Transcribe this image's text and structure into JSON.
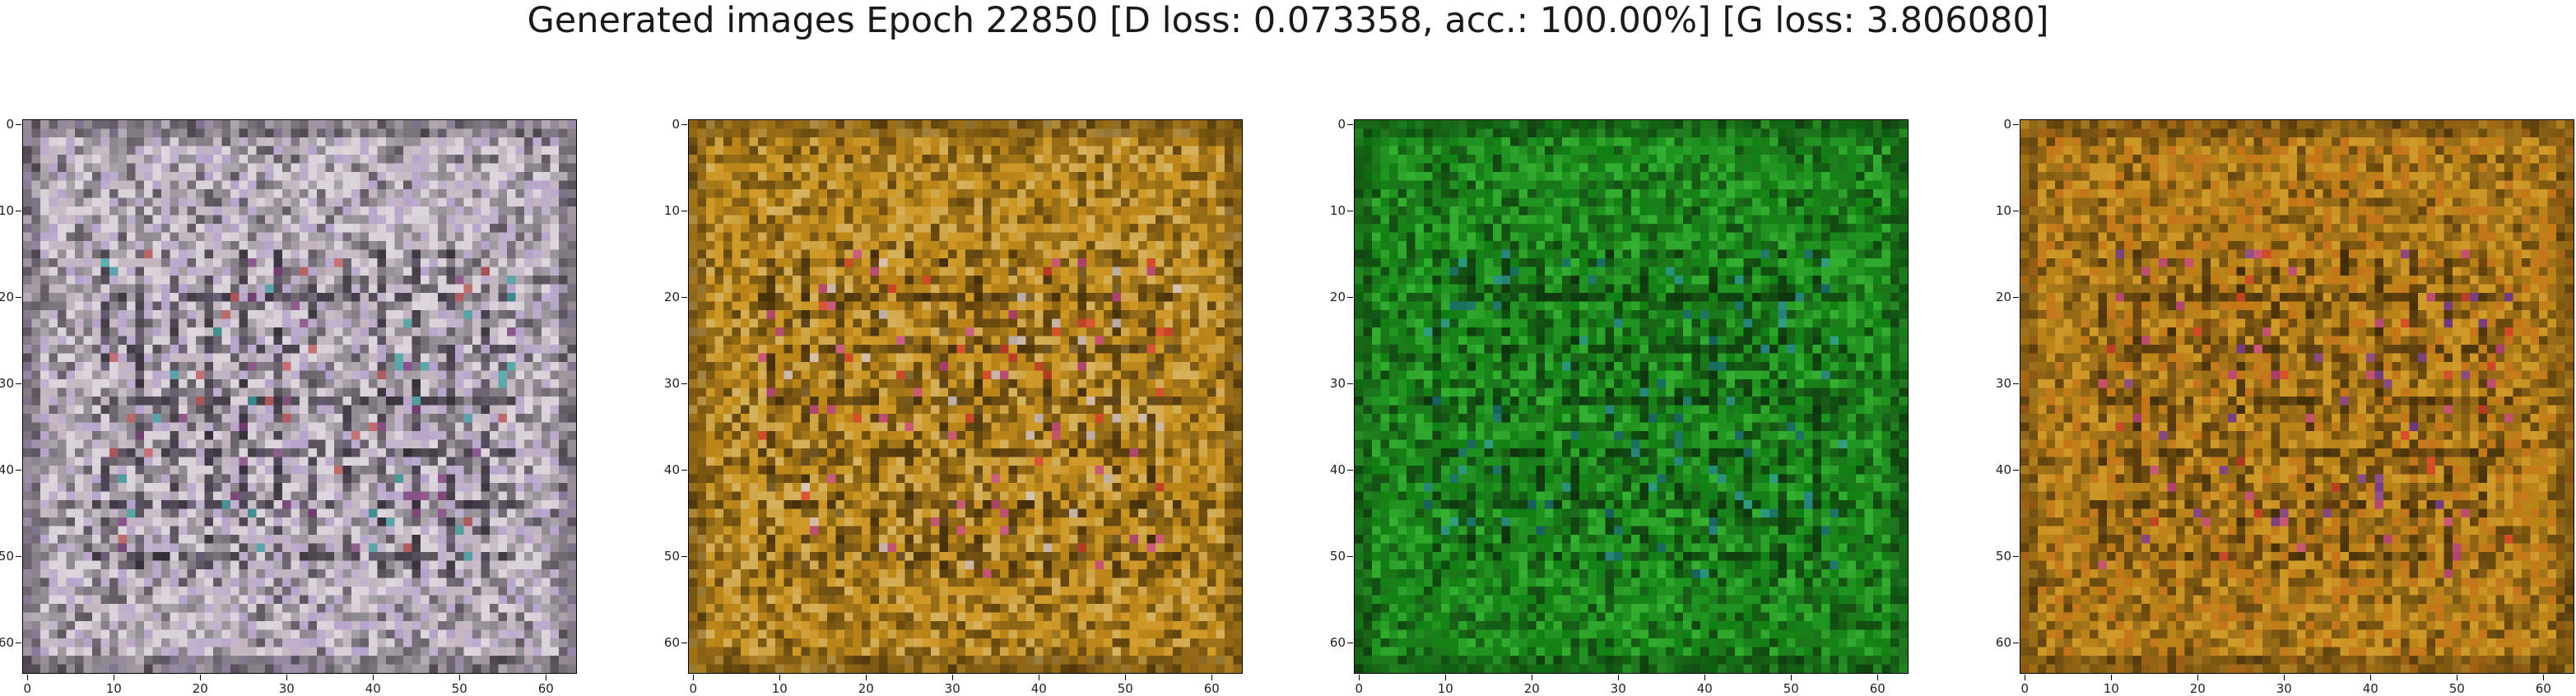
{
  "title": "Generated images Epoch 22850 [D loss: 0.073358, acc.: 100.00%] [G loss: 3.806080]",
  "chart_data": [
    {
      "type": "heatmap",
      "image": "generated sample 1",
      "dominant_color": "#d2c8cf",
      "shade_colors": [
        "#2a2430",
        "#6e6a72",
        "#b9aab8",
        "#e4dbe4",
        "#a892c9"
      ],
      "accent_colors": [
        "#3aa1a0",
        "#c45a58",
        "#7a3a78"
      ],
      "pixels": [
        64,
        64
      ],
      "xlim": [
        -0.5,
        63.5
      ],
      "ylim": [
        63.5,
        -0.5
      ],
      "x_ticks": [
        0,
        10,
        20,
        30,
        40,
        50,
        60
      ],
      "y_ticks": [
        0,
        10,
        20,
        30,
        40,
        50,
        60
      ]
    },
    {
      "type": "heatmap",
      "image": "generated sample 2",
      "dominant_color": "#c28e1d",
      "shade_colors": [
        "#3a2608",
        "#7a5614",
        "#b47d16",
        "#d7a232",
        "#e0c27c"
      ],
      "accent_colors": [
        "#d63a2a",
        "#c7448a",
        "#dacdd8"
      ],
      "pixels": [
        64,
        64
      ],
      "xlim": [
        -0.5,
        63.5
      ],
      "ylim": [
        63.5,
        -0.5
      ],
      "x_ticks": [
        0,
        10,
        20,
        30,
        40,
        50,
        60
      ],
      "y_ticks": [
        0,
        10,
        20,
        30,
        40,
        50,
        60
      ]
    },
    {
      "type": "heatmap",
      "image": "generated sample 3",
      "dominant_color": "#1f8a1e",
      "shade_colors": [
        "#0c2c0c",
        "#186a17",
        "#229a22",
        "#3dc13a",
        "#0a7a10"
      ],
      "accent_colors": [
        "#1a6a78",
        "#2f9a9a"
      ],
      "pixels": [
        64,
        64
      ],
      "xlim": [
        -0.5,
        63.5
      ],
      "ylim": [
        63.5,
        -0.5
      ],
      "x_ticks": [
        0,
        10,
        20,
        30,
        40,
        50,
        60
      ],
      "y_ticks": [
        0,
        10,
        20,
        30,
        40,
        50,
        60
      ]
    },
    {
      "type": "heatmap",
      "image": "generated sample 4",
      "dominant_color": "#c28a1c",
      "shade_colors": [
        "#3a2608",
        "#7a5614",
        "#b47d16",
        "#d7a232",
        "#c66a18"
      ],
      "accent_colors": [
        "#d63a2a",
        "#c7448a",
        "#7a3aa0"
      ],
      "pixels": [
        64,
        64
      ],
      "xlim": [
        -0.5,
        63.5
      ],
      "ylim": [
        63.5,
        -0.5
      ],
      "x_ticks": [
        0,
        10,
        20,
        30,
        40,
        50,
        60
      ],
      "y_ticks": [
        0,
        10,
        20,
        30,
        40,
        50,
        60
      ]
    }
  ]
}
